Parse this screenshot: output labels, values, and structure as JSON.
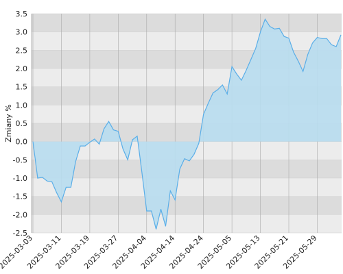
{
  "chart_data": {
    "type": "area",
    "ylabel": "Zmiany %",
    "categories": [
      "2025-03-03",
      null,
      null,
      null,
      null,
      null,
      "2025-03-11",
      null,
      null,
      null,
      null,
      null,
      "2025-03-19",
      null,
      null,
      null,
      null,
      null,
      "2025-03-27",
      null,
      null,
      null,
      null,
      null,
      "2025-04-04",
      null,
      null,
      null,
      null,
      null,
      "2025-04-14",
      null,
      null,
      null,
      null,
      null,
      "2025-04-24",
      null,
      null,
      null,
      null,
      null,
      "2025-05-05",
      null,
      null,
      null,
      null,
      null,
      "2025-05-13",
      null,
      null,
      null,
      null,
      null,
      "2025-05-21",
      null,
      null,
      null,
      null,
      null,
      "2025-05-29",
      null,
      null,
      null,
      null,
      null
    ],
    "series": [
      {
        "color": "#5aaee8",
        "fill": "#b8ddef",
        "values": [
          0,
          -1.0,
          -0.98,
          -1.08,
          -1.1,
          -1.4,
          -1.65,
          -1.25,
          -1.25,
          -0.55,
          -0.12,
          -0.12,
          -0.02,
          0.07,
          -0.07,
          0.35,
          0.55,
          0.32,
          0.28,
          -0.2,
          -0.5,
          0.05,
          0.15,
          -0.85,
          -1.9,
          -1.9,
          -2.4,
          -1.85,
          -2.32,
          -1.35,
          -1.6,
          -0.75,
          -0.47,
          -0.53,
          -0.35,
          -0.05,
          0.75,
          1.05,
          1.33,
          1.42,
          1.55,
          1.3,
          2.05,
          1.85,
          1.68,
          1.95,
          2.25,
          2.55,
          3.0,
          3.35,
          3.15,
          3.08,
          3.1,
          2.88,
          2.83,
          2.45,
          2.2,
          1.92,
          2.38,
          2.7,
          2.85,
          2.82,
          2.82,
          2.65,
          2.6,
          2.92
        ]
      }
    ],
    "ylim": [
      -2.5,
      3.5
    ],
    "yticks": [
      3.5,
      {
        "value": 3,
        "label": "3.0"
      },
      2.5,
      {
        "value": 2,
        "label": "2.0"
      },
      1.5,
      {
        "value": 1,
        "label": "1.0"
      },
      0.5,
      {
        "value": 0,
        "label": "0.0"
      },
      -0.5,
      {
        "value": -1,
        "label": "-1.0"
      },
      -1.5,
      {
        "value": -2,
        "label": "-2.0"
      },
      -2.5
    ],
    "grid": true
  }
}
